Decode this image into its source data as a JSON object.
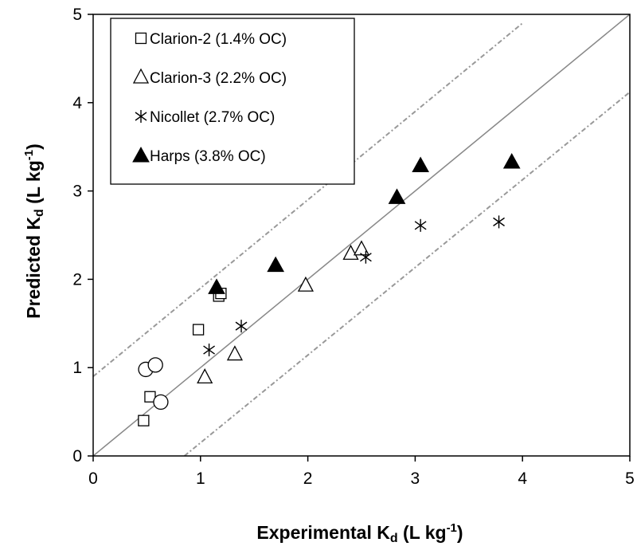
{
  "chart_data": {
    "type": "scatter",
    "xlim": [
      0,
      5
    ],
    "ylim": [
      0,
      5
    ],
    "x_ticks": [
      0,
      1,
      2,
      3,
      4,
      5
    ],
    "y_ticks": [
      0,
      1,
      2,
      3,
      4,
      5
    ],
    "xlabel": {
      "main": "Experimental K",
      "sub": "d",
      "unit": " (L kg",
      "sup": "-1",
      "close": ")"
    },
    "ylabel": {
      "main": "Predicted K",
      "sub": "d",
      "unit": " (L kg",
      "sup": "-1",
      "close": ")"
    },
    "grid": false,
    "legend_position": "top-left",
    "reference_lines": [
      {
        "kind": "1:1",
        "points": [
          [
            0,
            0
          ],
          [
            5,
            5
          ]
        ],
        "style": "solid",
        "color": "#888888"
      },
      {
        "kind": "upper bound",
        "points": [
          [
            0,
            0.9
          ],
          [
            4,
            4.9
          ]
        ],
        "style": "dotted",
        "color": "#999999"
      },
      {
        "kind": "lower bound",
        "points": [
          [
            0.85,
            0
          ],
          [
            5,
            4.12
          ]
        ],
        "style": "dotted",
        "color": "#999999"
      }
    ],
    "series": [
      {
        "name": "Clarion-2 (1.4% OC)",
        "marker": "square",
        "points": [
          [
            0.47,
            0.4
          ],
          [
            0.53,
            0.67
          ],
          [
            0.98,
            1.43
          ],
          [
            1.17,
            1.81
          ],
          [
            1.19,
            1.84
          ]
        ]
      },
      {
        "name": "Clarion-3 (2.2% OC)",
        "marker": "triangle",
        "points": [
          [
            1.04,
            0.89
          ],
          [
            1.32,
            1.15
          ],
          [
            1.98,
            1.93
          ],
          [
            2.4,
            2.29
          ],
          [
            2.5,
            2.34
          ]
        ]
      },
      {
        "name": "Nicollet (2.7% OC)",
        "marker": "asterisk",
        "points": [
          [
            1.08,
            1.2
          ],
          [
            1.38,
            1.47
          ],
          [
            2.54,
            2.25
          ],
          [
            3.05,
            2.61
          ],
          [
            3.78,
            2.65
          ]
        ]
      },
      {
        "name": "Harps (3.8% OC)",
        "marker": "filled-triangle",
        "points": [
          [
            1.15,
            1.91
          ],
          [
            1.7,
            2.16
          ],
          [
            2.83,
            2.93
          ],
          [
            3.05,
            3.29
          ],
          [
            3.9,
            3.33
          ]
        ]
      },
      {
        "marker": "circle",
        "points": [
          [
            0.49,
            0.98
          ],
          [
            0.58,
            1.03
          ],
          [
            0.63,
            0.61
          ]
        ]
      }
    ]
  }
}
